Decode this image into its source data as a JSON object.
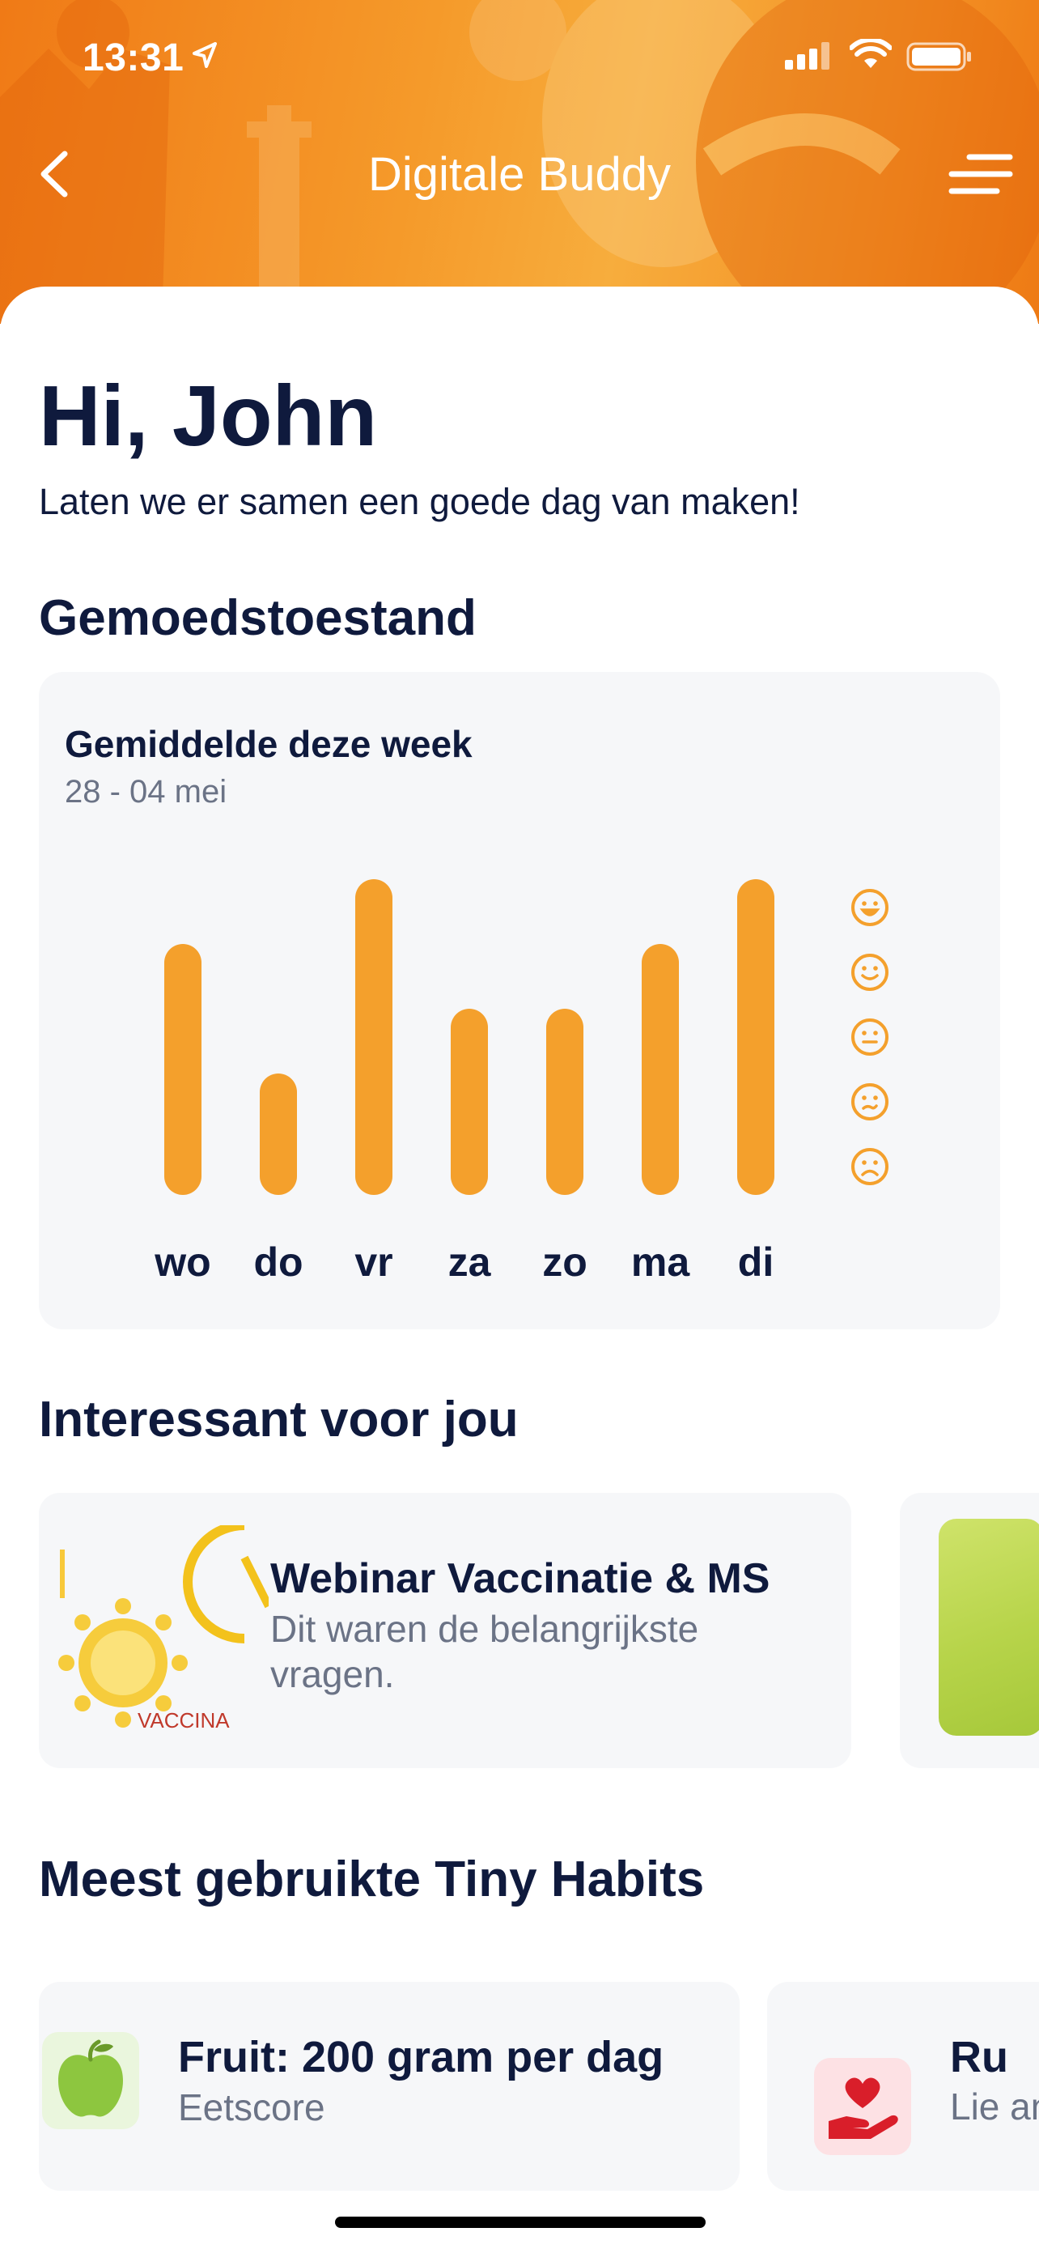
{
  "status_bar": {
    "time": "13:31"
  },
  "header": {
    "title": "Digitale Buddy"
  },
  "greeting": {
    "title": "Hi, John",
    "subtitle": "Laten we er samen een goede dag van maken!"
  },
  "mood": {
    "section_title": "Gemoedstoestand",
    "card_title": "Gemiddelde deze week",
    "date_range": "28 - 04 mei",
    "accent_color": "#f4a02c",
    "scale_icons": [
      "very-happy-face-icon",
      "happy-face-icon",
      "neutral-face-icon",
      "unsure-face-icon",
      "sad-face-icon"
    ]
  },
  "chart_data": {
    "type": "bar",
    "categories": [
      "wo",
      "do",
      "vr",
      "za",
      "zo",
      "ma",
      "di"
    ],
    "values": [
      4,
      2,
      5,
      3,
      3,
      4,
      5
    ],
    "ylim": [
      0,
      5
    ],
    "xlabel": "",
    "ylabel": ""
  },
  "interesting": {
    "section_title": "Interessant voor jou",
    "articles": [
      {
        "title": "Webinar Vaccinatie & MS",
        "description": "Dit waren de belangrijkste vragen.",
        "thumb_text": "VACCINA"
      }
    ]
  },
  "habits": {
    "section_title": "Meest gebruikte Tiny Habits",
    "items": [
      {
        "title": "Fruit: 200 gram per dag",
        "subtitle": "Eetscore",
        "icon": "apple-icon"
      },
      {
        "title": "Ru",
        "subtitle": "Lie anc",
        "icon": "heart-hand-icon"
      }
    ]
  }
}
